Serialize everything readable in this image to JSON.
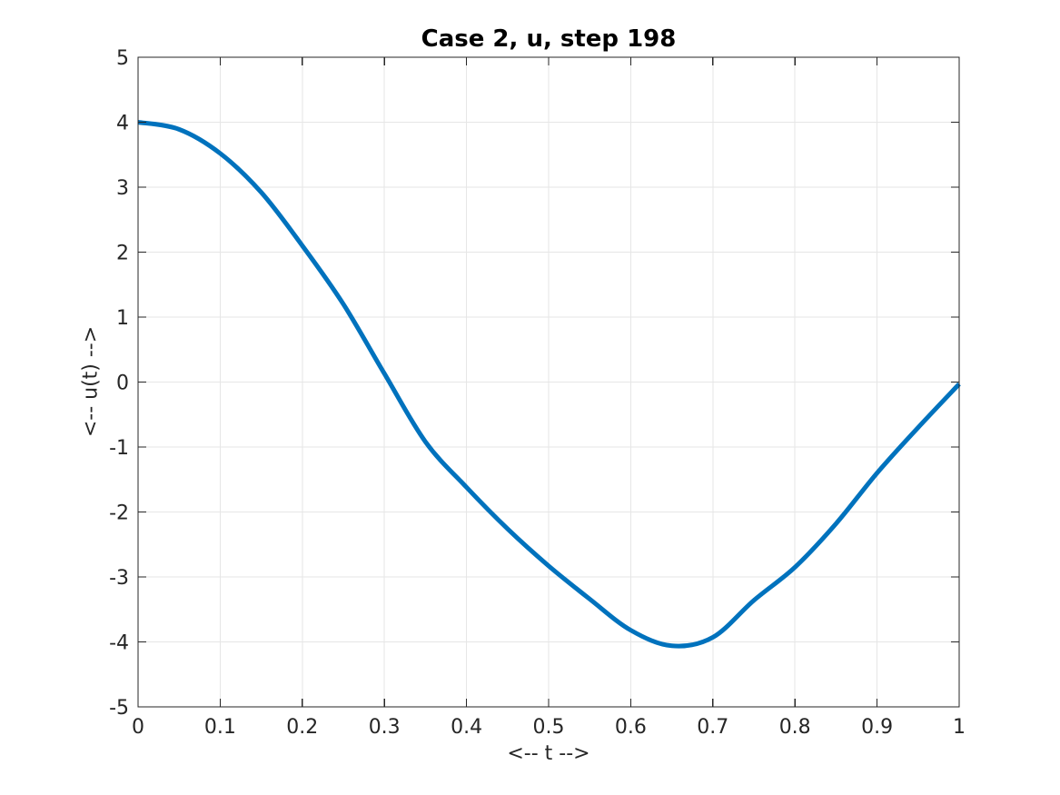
{
  "chart_data": {
    "type": "line",
    "title": "Case 2, u, step 198",
    "xlabel": "<-- t -->",
    "ylabel": "<-- u(t) -->",
    "xlim": [
      0,
      1
    ],
    "ylim": [
      -5,
      5
    ],
    "xticks": [
      0,
      0.1,
      0.2,
      0.3,
      0.4,
      0.5,
      0.6,
      0.7,
      0.8,
      0.9,
      1
    ],
    "xtick_labels": [
      "0",
      "0.1",
      "0.2",
      "0.3",
      "0.4",
      "0.5",
      "0.6",
      "0.7",
      "0.8",
      "0.9",
      "1"
    ],
    "yticks": [
      -5,
      -4,
      -3,
      -2,
      -1,
      0,
      1,
      2,
      3,
      4,
      5
    ],
    "ytick_labels": [
      "-5",
      "-4",
      "-3",
      "-2",
      "-1",
      "0",
      "1",
      "2",
      "3",
      "4",
      "5"
    ],
    "grid": true,
    "legend": "none",
    "series": [
      {
        "name": "u",
        "x": [
          0,
          0.05,
          0.1,
          0.15,
          0.2,
          0.25,
          0.3,
          0.35,
          0.4,
          0.45,
          0.5,
          0.55,
          0.6,
          0.65,
          0.7,
          0.75,
          0.8,
          0.85,
          0.9,
          0.95,
          1
        ],
        "y": [
          4.0,
          3.89,
          3.52,
          2.92,
          2.1,
          1.2,
          0.13,
          -0.92,
          -1.62,
          -2.26,
          -2.83,
          -3.34,
          -3.82,
          -4.06,
          -3.93,
          -3.36,
          -2.85,
          -2.18,
          -1.4,
          -0.7,
          -0.03
        ]
      }
    ]
  },
  "colors": {
    "line": "#0072BD",
    "grid": "#e6e6e6",
    "axis": "#262626",
    "tick_label": "#262626",
    "title": "#000000",
    "background": "#ffffff"
  }
}
